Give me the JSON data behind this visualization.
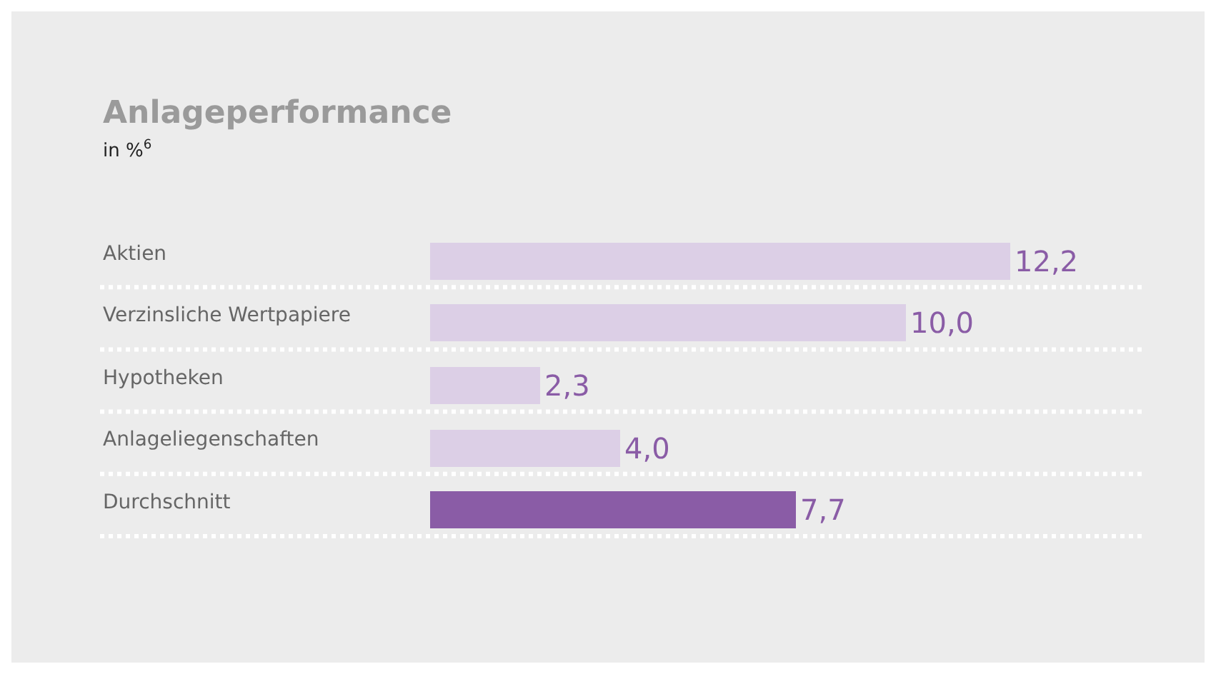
{
  "chart_data": {
    "type": "bar",
    "orientation": "horizontal",
    "title": "Anlageperformance",
    "subtitle": "in %$^{6}$",
    "categories": [
      "Aktien",
      "Verzinsliche Wertpapiere",
      "Hypotheken",
      "Anlageliegenschaften",
      "Durchschnitt"
    ],
    "values": [
      12.2,
      10.0,
      2.3,
      4.0,
      7.7
    ],
    "value_labels": [
      "12,2",
      "10,0",
      "2,3",
      "4,0",
      "7,7"
    ],
    "colors": [
      "#dccfe6",
      "#dccfe6",
      "#dccfe6",
      "#dccfe6",
      "#8a5ca6"
    ],
    "xlim": [
      0,
      15
    ],
    "tick_labels": "y",
    "grid": "y",
    "legend": false
  }
}
